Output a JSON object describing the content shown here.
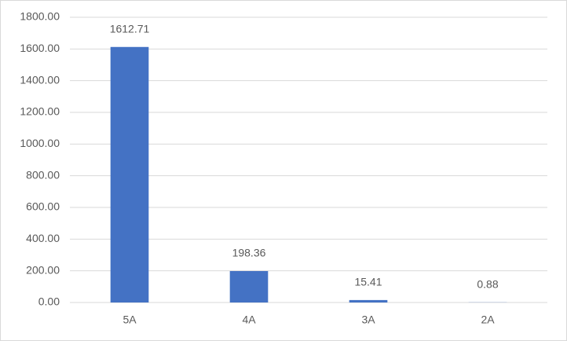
{
  "chart_data": {
    "type": "bar",
    "categories": [
      "5A",
      "4A",
      "3A",
      "2A"
    ],
    "values": [
      1612.71,
      198.36,
      15.41,
      0.88
    ],
    "color": "#4472c4",
    "ylim": [
      0,
      1800
    ],
    "yticks": [
      {
        "value": 0,
        "label": "0.00"
      },
      {
        "value": 200,
        "label": "200.00"
      },
      {
        "value": 400,
        "label": "400.00"
      },
      {
        "value": 600,
        "label": "600.00"
      },
      {
        "value": 800,
        "label": "800.00"
      },
      {
        "value": 1000,
        "label": "1000.00"
      },
      {
        "value": 1200,
        "label": "1200.00"
      },
      {
        "value": 1400,
        "label": "1400.00"
      },
      {
        "value": 1600,
        "label": "1600.00"
      },
      {
        "value": 1800,
        "label": "1800.00"
      }
    ],
    "grid": true
  }
}
